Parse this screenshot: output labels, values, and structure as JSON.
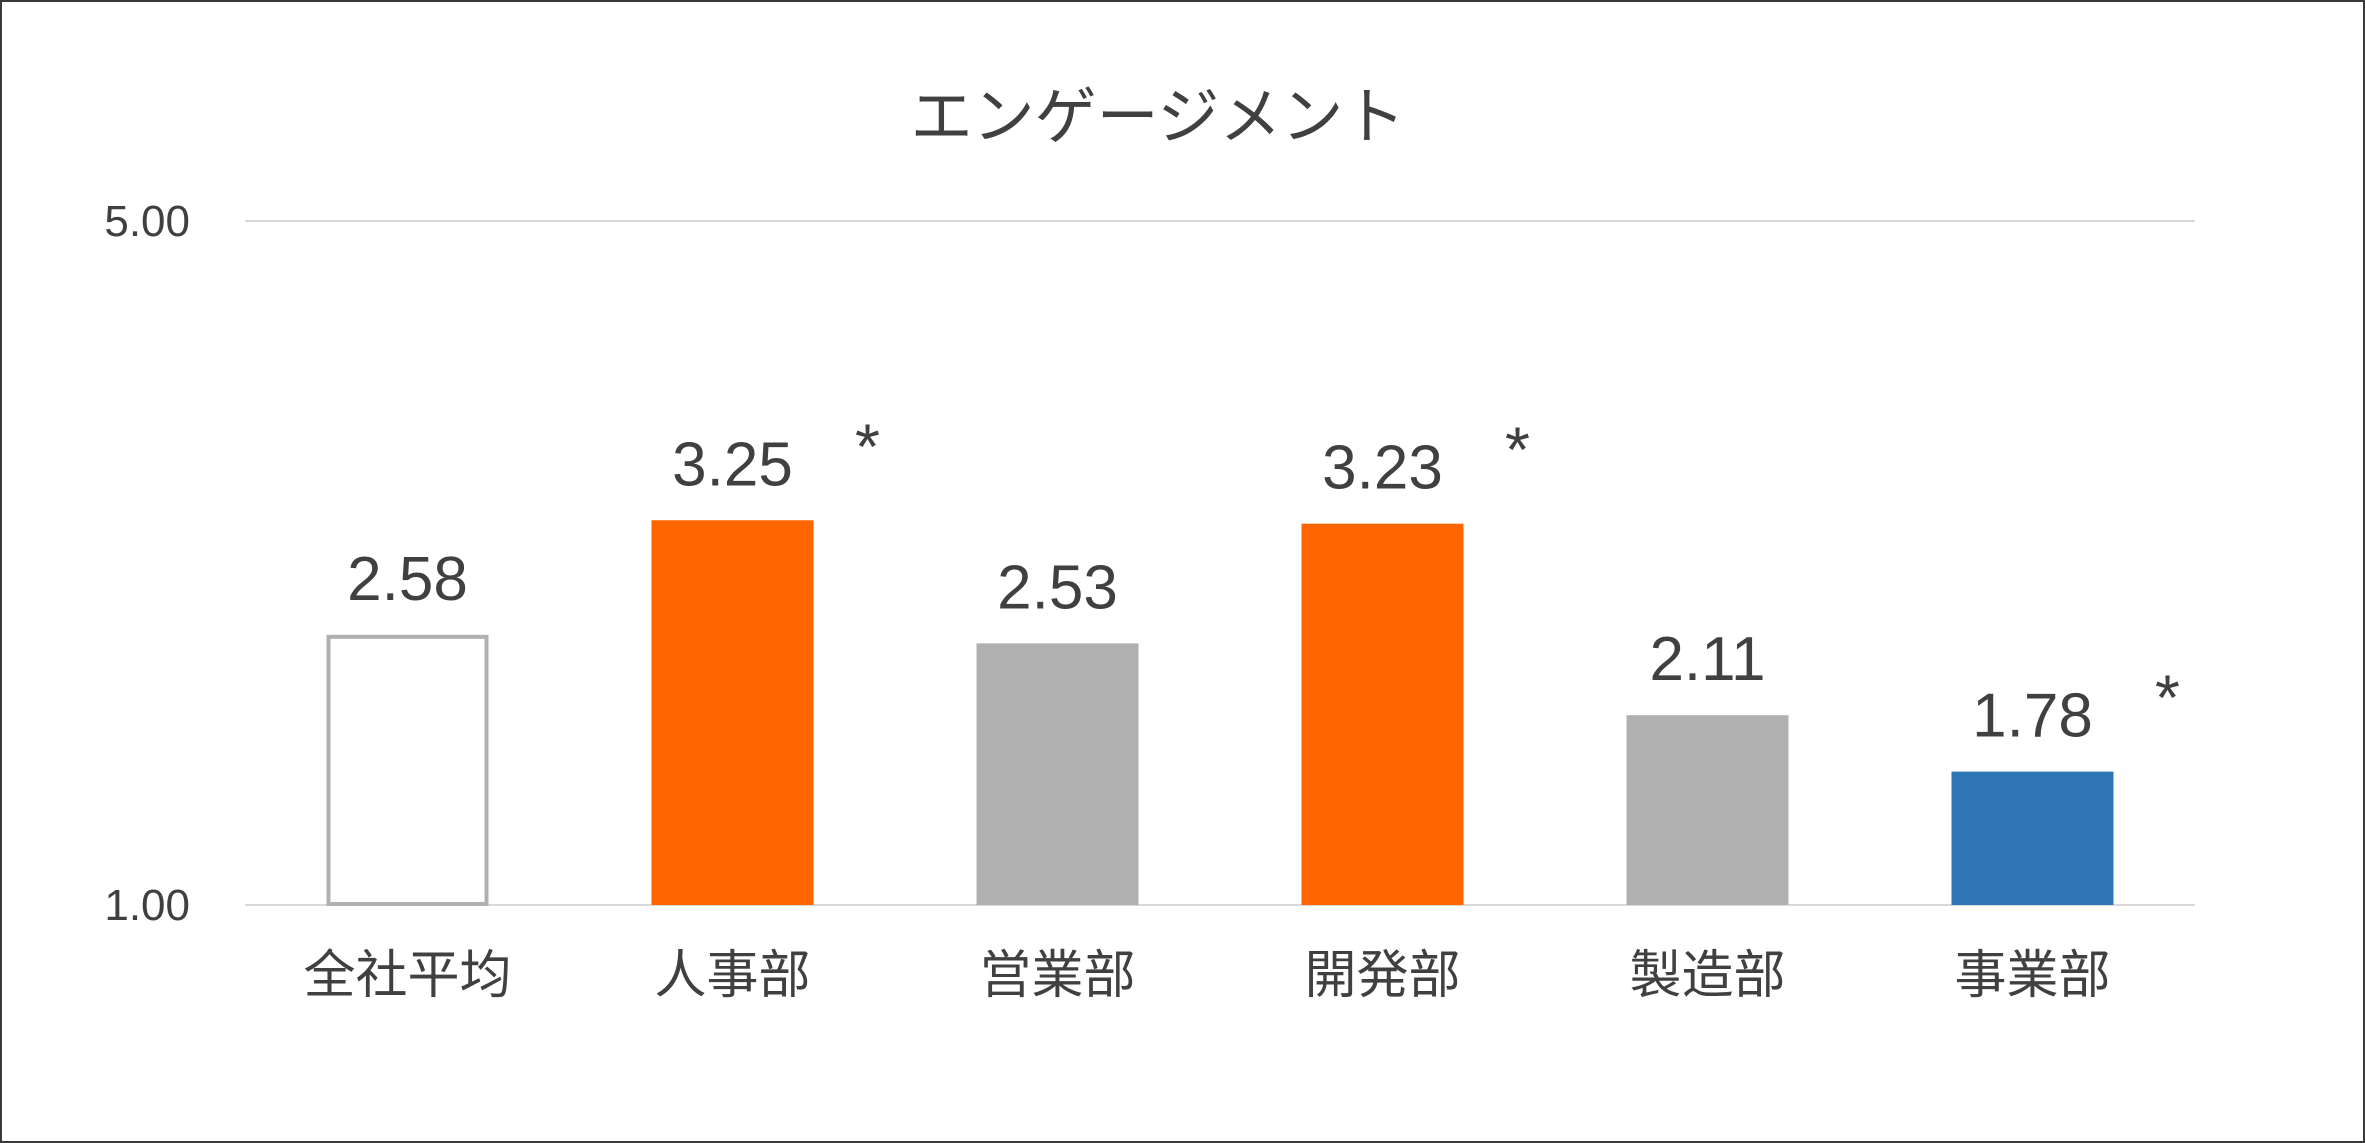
{
  "chart_data": {
    "type": "bar",
    "title": "エンゲージメント",
    "categories": [
      "全社平均",
      "人事部",
      "営業部",
      "開発部",
      "製造部",
      "事業部"
    ],
    "values": [
      2.58,
      3.25,
      2.53,
      3.23,
      2.11,
      1.78
    ],
    "value_labels": [
      "2.58",
      "3.25",
      "2.53",
      "3.23",
      "2.11",
      "1.78"
    ],
    "annotations": [
      "",
      "*",
      "",
      "*",
      "",
      "*"
    ],
    "bar_colors": [
      "#ffffff",
      "#ff6600",
      "#b0b0b0",
      "#ff6600",
      "#b0b0b0",
      "#2e75b6"
    ],
    "bar_outline_colors": [
      "#b0b0b0",
      "none",
      "none",
      "none",
      "none",
      "none"
    ],
    "ylim": [
      1.0,
      5.0
    ],
    "y_ticks": [
      1.0,
      5.0
    ],
    "y_tick_labels": [
      "1.00",
      "5.00"
    ],
    "grid": true,
    "gridline_color": "#d9d9d9",
    "xlabel": "",
    "ylabel": ""
  }
}
